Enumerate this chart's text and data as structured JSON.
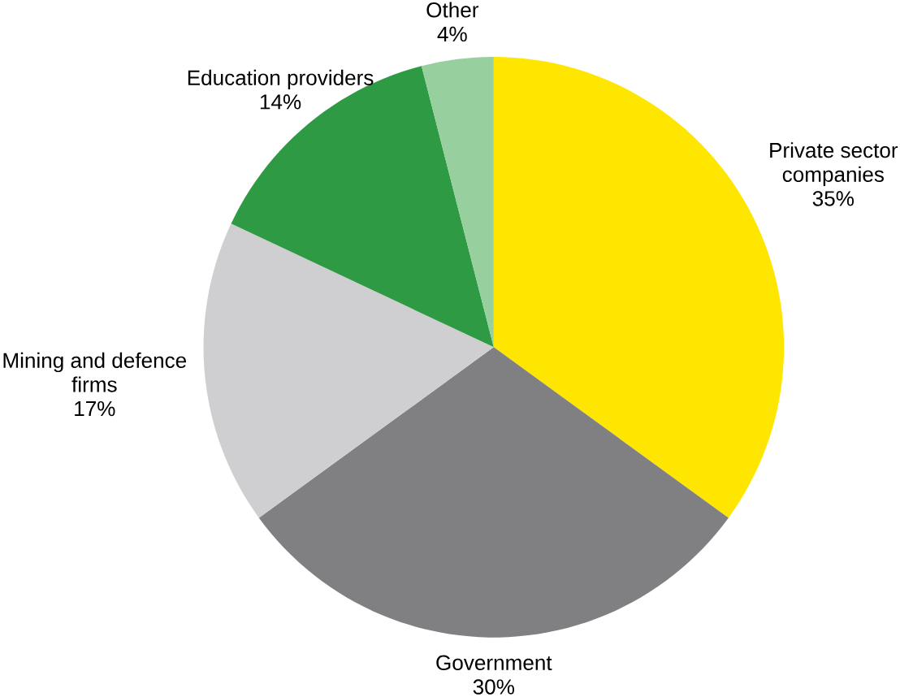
{
  "chart_data": {
    "type": "pie",
    "categories": [
      "Private sector companies",
      "Government",
      "Mining and defence firms",
      "Education providers",
      "Other"
    ],
    "values": [
      35,
      30,
      17,
      14,
      4
    ],
    "value_labels": [
      "35%",
      "30%",
      "17%",
      "14%",
      "4%"
    ],
    "colors": [
      "#ffe600",
      "#808083",
      "#cfcfd1",
      "#2e9a44",
      "#97cf9f"
    ]
  }
}
